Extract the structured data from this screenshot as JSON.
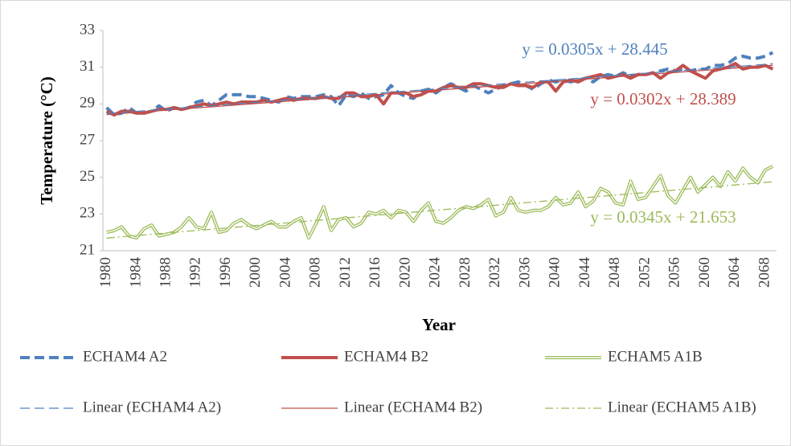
{
  "chart_data": {
    "type": "line",
    "xlabel": "Year",
    "ylabel": "Temperature (°C)",
    "categories": [
      "1980",
      null,
      null,
      null,
      "1984",
      null,
      null,
      null,
      "1988",
      null,
      null,
      null,
      "1992",
      null,
      null,
      null,
      "1996",
      null,
      null,
      null,
      "2000",
      null,
      null,
      null,
      "2004",
      null,
      null,
      null,
      "2008",
      null,
      null,
      null,
      "2012",
      null,
      null,
      null,
      "2016",
      null,
      null,
      null,
      "2020",
      null,
      null,
      null,
      "2024",
      null,
      null,
      null,
      "2028",
      null,
      null,
      null,
      "2032",
      null,
      null,
      null,
      "2036",
      null,
      null,
      null,
      "2040",
      null,
      null,
      null,
      "2044",
      null,
      null,
      null,
      "2048",
      null,
      null,
      null,
      "2052",
      null,
      null,
      null,
      "2056",
      null,
      null,
      null,
      "2060",
      null,
      null,
      null,
      "2064",
      null,
      null,
      null,
      "2068",
      null
    ],
    "ylim": [
      21,
      33
    ],
    "yticks": [
      21,
      23,
      25,
      27,
      29,
      31,
      33
    ],
    "grid": false,
    "series": [
      {
        "name": "ECHAM4 A2",
        "color": "#4f81bd",
        "style": "dashed",
        "values": [
          28.8,
          28.4,
          28.5,
          28.8,
          28.5,
          28.5,
          28.6,
          28.9,
          28.6,
          28.8,
          28.7,
          28.8,
          29.1,
          29.2,
          28.9,
          29.2,
          29.5,
          29.5,
          29.5,
          29.4,
          29.4,
          29.3,
          29.2,
          29.1,
          29.4,
          29.3,
          29.4,
          29.4,
          29.4,
          29.5,
          29.4,
          28.9,
          29.5,
          29.4,
          29.6,
          29.3,
          29.4,
          29.5,
          30.0,
          29.6,
          29.4,
          29.3,
          29.7,
          29.8,
          29.6,
          29.9,
          30.1,
          29.9,
          29.7,
          30.0,
          29.8,
          29.6,
          29.8,
          30.0,
          30.1,
          30.2,
          30.0,
          29.8,
          30.1,
          30.3,
          30.2,
          30.3,
          30.2,
          30.3,
          30.4,
          30.2,
          30.5,
          30.6,
          30.5,
          30.7,
          30.5,
          30.6,
          30.6,
          30.7,
          30.8,
          30.9,
          30.8,
          30.9,
          30.8,
          30.9,
          30.9,
          31.1,
          31.1,
          31.2,
          31.5,
          31.6,
          31.5,
          31.5,
          31.6,
          31.8
        ]
      },
      {
        "name": "ECHAM4 B2",
        "color": "#c0504d",
        "style": "solid",
        "values": [
          28.6,
          28.4,
          28.6,
          28.6,
          28.5,
          28.5,
          28.6,
          28.7,
          28.7,
          28.8,
          28.7,
          28.8,
          28.9,
          29.0,
          28.9,
          29.0,
          29.1,
          29.0,
          29.1,
          29.1,
          29.1,
          29.2,
          29.1,
          29.2,
          29.3,
          29.2,
          29.3,
          29.3,
          29.3,
          29.4,
          29.3,
          29.3,
          29.6,
          29.6,
          29.4,
          29.4,
          29.5,
          29.0,
          29.6,
          29.6,
          29.6,
          29.4,
          29.5,
          29.7,
          29.7,
          29.9,
          30.0,
          29.9,
          29.9,
          30.1,
          30.1,
          30.0,
          29.9,
          29.9,
          30.1,
          30.0,
          30.0,
          29.9,
          30.2,
          30.2,
          29.7,
          30.2,
          30.3,
          30.2,
          30.4,
          30.5,
          30.6,
          30.4,
          30.5,
          30.6,
          30.4,
          30.6,
          30.6,
          30.7,
          30.4,
          30.7,
          30.8,
          31.1,
          30.8,
          30.6,
          30.4,
          30.8,
          30.9,
          31.0,
          31.2,
          30.9,
          31.0,
          31.0,
          31.1,
          30.9
        ]
      },
      {
        "name": "ECHAM5 A1B",
        "color": "#9bbb59",
        "style": "double",
        "values": [
          22.0,
          22.1,
          22.3,
          21.8,
          21.7,
          22.2,
          22.4,
          21.8,
          21.9,
          22.0,
          22.3,
          22.8,
          22.3,
          22.2,
          23.1,
          22.0,
          22.1,
          22.5,
          22.7,
          22.4,
          22.2,
          22.4,
          22.6,
          22.3,
          22.3,
          22.6,
          22.8,
          21.7,
          22.5,
          23.4,
          22.1,
          22.7,
          22.8,
          22.3,
          22.5,
          23.1,
          23.0,
          23.2,
          22.8,
          23.2,
          23.1,
          22.6,
          23.2,
          23.6,
          22.6,
          22.5,
          22.8,
          23.2,
          23.4,
          23.3,
          23.5,
          23.8,
          22.9,
          23.1,
          23.9,
          23.2,
          23.1,
          23.2,
          23.2,
          23.4,
          23.9,
          23.5,
          23.6,
          24.2,
          23.4,
          23.7,
          24.4,
          24.2,
          23.6,
          23.5,
          24.8,
          23.8,
          23.9,
          24.5,
          25.1,
          24.0,
          23.6,
          24.3,
          25.0,
          24.2,
          24.6,
          25.0,
          24.5,
          25.3,
          24.8,
          25.5,
          25.0,
          24.7,
          25.4,
          25.6
        ]
      }
    ],
    "trendlines": [
      {
        "name": "Linear (ECHAM4 A2)",
        "color": "#4f81bd",
        "style": "dashed",
        "slope": 0.0305,
        "intercept": 28.445,
        "label": "y = 0.0305x + 28.445"
      },
      {
        "name": "Linear (ECHAM4 B2)",
        "color": "#c0504d",
        "style": "solid",
        "slope": 0.0302,
        "intercept": 28.389,
        "label": "y = 0.0302x + 28.389"
      },
      {
        "name": "Linear (ECHAM5 A1B)",
        "color": "#9bbb59",
        "style": "dashdot",
        "slope": 0.0345,
        "intercept": 21.653,
        "label": "y = 0.0345x + 21.653"
      }
    ]
  }
}
